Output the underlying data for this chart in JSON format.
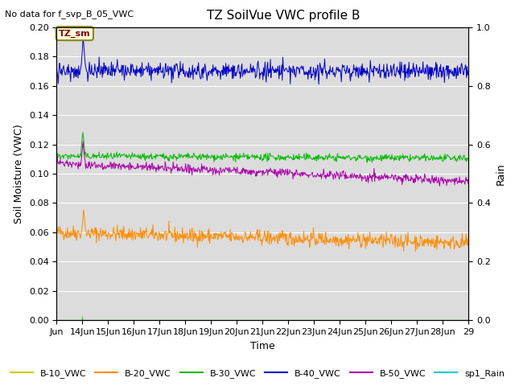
{
  "title": "TZ SoilVue VWC profile B",
  "subtitle": "No data for f_svp_B_05_VWC",
  "xlabel": "Time",
  "ylabel_left": "Soil Moisture (VWC)",
  "ylabel_right": "Rain",
  "annotation": "TZ_sm",
  "ylim_left": [
    0.0,
    0.2
  ],
  "ylim_right": [
    0.0,
    1.0
  ],
  "bg_color": "#dcdcdc",
  "fig_color": "#ffffff",
  "series_colors": {
    "B10": "#cccc00",
    "B20": "#ff8c00",
    "B30": "#00bb00",
    "B40": "#0000cc",
    "B50": "#aa00aa",
    "rain": "#00cccc"
  },
  "xtick_labels": [
    "Jun",
    "14Jun",
    "15Jun",
    "16Jun",
    "17Jun",
    "18Jun",
    "19Jun",
    "20Jun",
    "21Jun",
    "22Jun",
    "23Jun",
    "24Jun",
    "25Jun",
    "26Jun",
    "27Jun",
    "28Jun",
    "29"
  ],
  "yticks_left": [
    0.0,
    0.02,
    0.04,
    0.06,
    0.08,
    0.1,
    0.12,
    0.14,
    0.16,
    0.18,
    0.2
  ],
  "yticks_right": [
    0.0,
    0.2,
    0.4,
    0.6,
    0.8,
    1.0
  ],
  "legend_labels": [
    "B-10_VWC",
    "B-20_VWC",
    "B-30_VWC",
    "B-40_VWC",
    "B-50_VWC",
    "sp1_Rain"
  ]
}
